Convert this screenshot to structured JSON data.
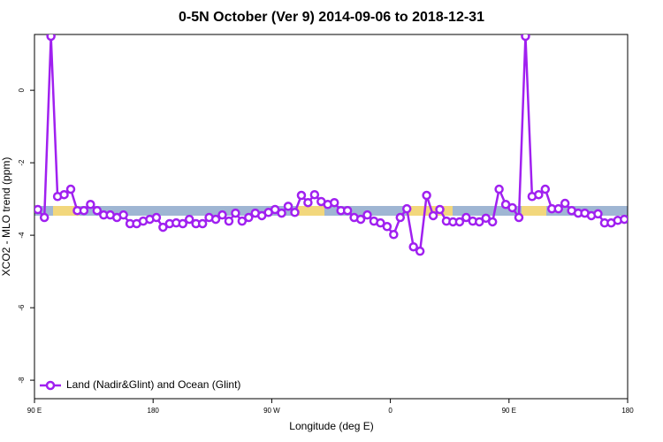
{
  "chart_data": {
    "type": "line",
    "title": "0-5N October (Ver 9)   2014-09-06 to 2018-12-31",
    "x_label": "Longitude (deg E)",
    "y_label": "XCO2 - MLO trend (ppm)",
    "xlim": [
      90,
      540
    ],
    "xticks": [
      {
        "value": 90,
        "label": "90 E"
      },
      {
        "value": 180,
        "label": "180"
      },
      {
        "value": 270,
        "label": "90 W"
      },
      {
        "value": 360,
        "label": "0"
      },
      {
        "value": 450,
        "label": "90 E"
      },
      {
        "value": 540,
        "label": "180"
      }
    ],
    "ylim": [
      -8.51,
      1.54
    ],
    "yticks": [
      0,
      -2,
      -4,
      -6,
      -8
    ],
    "legend_position": "bottom-left",
    "x": [
      92.5,
      97.5,
      102.5,
      107.5,
      112.5,
      117.5,
      122.5,
      127.5,
      132.5,
      137.5,
      142.5,
      147.5,
      152.5,
      157.5,
      162.5,
      167.5,
      172.5,
      177.5,
      182.5,
      187.5,
      192.5,
      197.5,
      202.5,
      207.5,
      212.5,
      217.5,
      222.5,
      227.5,
      232.5,
      237.5,
      242.5,
      247.5,
      252.5,
      257.5,
      262.5,
      267.5,
      272.5,
      277.5,
      282.5,
      287.5,
      292.5,
      297.5,
      302.5,
      307.5,
      312.5,
      317.5,
      322.5,
      327.5,
      332.5,
      337.5,
      342.5,
      347.5,
      352.5,
      357.5,
      362.5,
      367.5,
      372.5,
      377.5,
      382.5,
      387.5,
      392.5,
      397.5,
      402.5,
      407.5,
      412.5,
      417.5,
      422.5,
      427.5,
      432.5,
      437.5,
      442.5,
      447.5,
      452.5,
      457.5,
      462.5,
      467.5,
      472.5,
      477.5,
      482.5,
      487.5,
      492.5,
      497.5,
      502.5,
      507.5,
      512.5,
      517.5,
      522.5,
      527.5,
      532.5,
      537.5
    ],
    "series": [
      {
        "name": "Land (Nadir&Glint) and Ocean (Glint)",
        "color": "#a020f0",
        "values": [
          -3.29,
          -3.51,
          1.49,
          -2.93,
          -2.88,
          -2.73,
          -3.32,
          -3.32,
          -3.15,
          -3.32,
          -3.44,
          -3.44,
          -3.51,
          -3.44,
          -3.68,
          -3.68,
          -3.61,
          -3.56,
          -3.51,
          -3.78,
          -3.68,
          -3.66,
          -3.68,
          -3.56,
          -3.68,
          -3.68,
          -3.51,
          -3.56,
          -3.44,
          -3.61,
          -3.39,
          -3.61,
          -3.51,
          -3.39,
          -3.46,
          -3.37,
          -3.29,
          -3.39,
          -3.2,
          -3.37,
          -2.9,
          -3.1,
          -2.88,
          -3.07,
          -3.15,
          -3.1,
          -3.32,
          -3.32,
          -3.51,
          -3.56,
          -3.44,
          -3.61,
          -3.66,
          -3.76,
          -3.98,
          -3.51,
          -3.27,
          -4.32,
          -4.44,
          -2.9,
          -3.46,
          -3.29,
          -3.61,
          -3.63,
          -3.63,
          -3.51,
          -3.61,
          -3.63,
          -3.53,
          -3.63,
          -2.73,
          -3.15,
          -3.24,
          -3.51,
          1.49,
          -2.93,
          -2.88,
          -2.73,
          -3.27,
          -3.27,
          -3.12,
          -3.32,
          -3.39,
          -3.39,
          -3.46,
          -3.41,
          -3.66,
          -3.66,
          -3.59,
          -3.56
        ]
      }
    ]
  }
}
